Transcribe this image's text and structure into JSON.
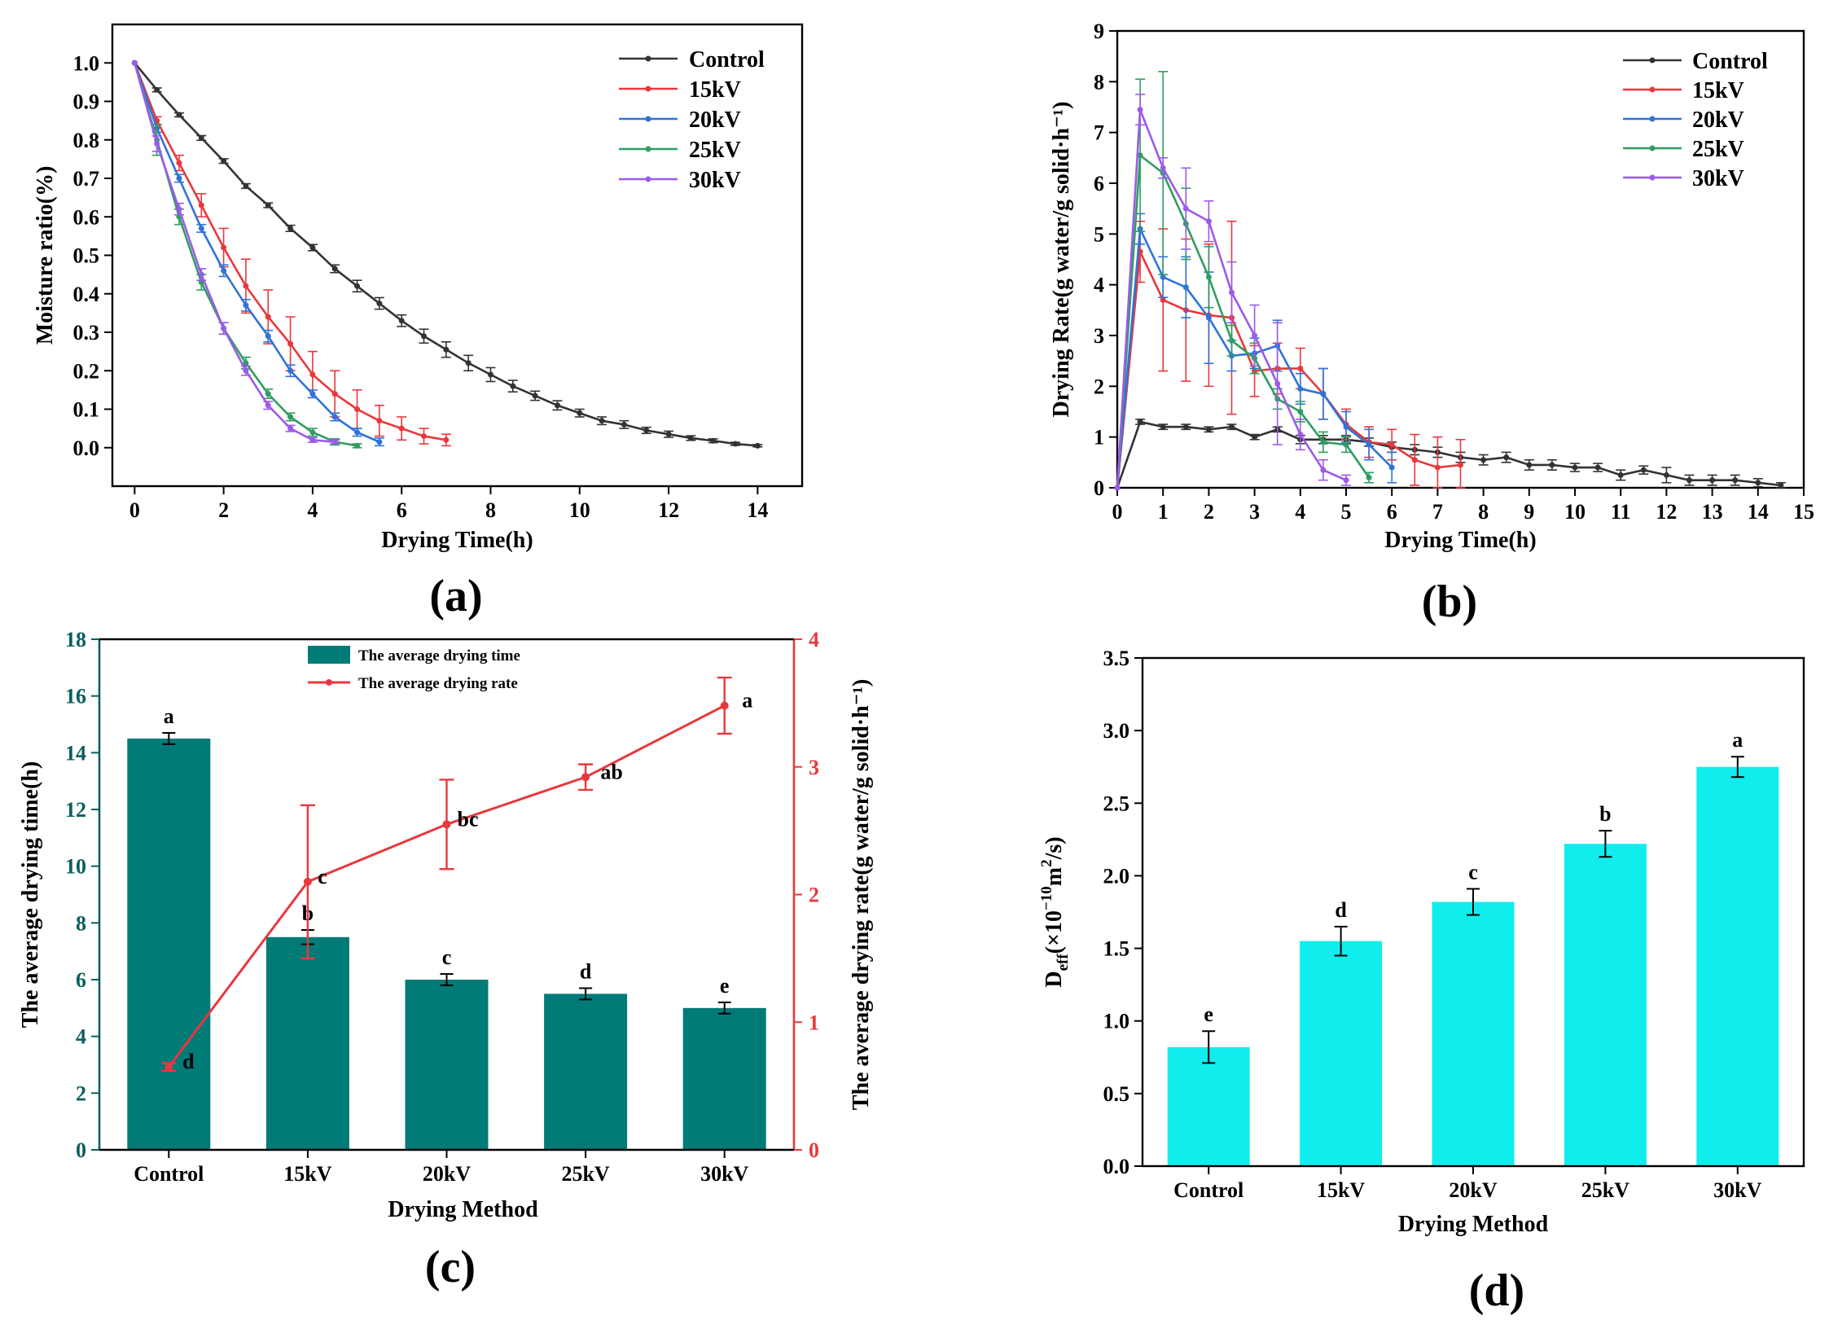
{
  "panels": {
    "a": "(a)",
    "b": "(b)",
    "c": "(c)",
    "d": "(d)"
  },
  "chart_data": [
    {
      "id": "a",
      "type": "line",
      "title": "",
      "xlabel": "Drying Time(h)",
      "ylabel": "Moisture ratio(%)",
      "xlim": [
        -0.5,
        15
      ],
      "ylim": [
        -0.1,
        1.1
      ],
      "xticks": [
        0,
        2,
        4,
        6,
        8,
        10,
        12,
        14
      ],
      "yticks": [
        0.0,
        0.1,
        0.2,
        0.3,
        0.4,
        0.5,
        0.6,
        0.7,
        0.8,
        0.9,
        1.0
      ],
      "ytick_labels": [
        "0.0",
        "0.1",
        "0.2",
        "0.3",
        "0.4",
        "0.5",
        "0.6",
        "0.7",
        "0.8",
        "0.9",
        "1.0"
      ],
      "legend_position": "top-right",
      "series": [
        {
          "name": "Control",
          "color": "#333333",
          "x": [
            0,
            0.5,
            1,
            1.5,
            2,
            2.5,
            3,
            3.5,
            4,
            4.5,
            5,
            5.5,
            6,
            6.5,
            7,
            7.5,
            8,
            8.5,
            9,
            9.5,
            10,
            10.5,
            11,
            11.5,
            12,
            12.5,
            13,
            13.5,
            14
          ],
          "y": [
            1.0,
            0.93,
            0.865,
            0.805,
            0.745,
            0.68,
            0.63,
            0.57,
            0.52,
            0.465,
            0.42,
            0.375,
            0.33,
            0.29,
            0.255,
            0.22,
            0.19,
            0.16,
            0.135,
            0.11,
            0.09,
            0.07,
            0.06,
            0.045,
            0.035,
            0.025,
            0.018,
            0.01,
            0.005
          ],
          "err": [
            0,
            0.005,
            0.005,
            0.006,
            0.006,
            0.006,
            0.006,
            0.008,
            0.008,
            0.01,
            0.015,
            0.015,
            0.015,
            0.018,
            0.02,
            0.02,
            0.018,
            0.015,
            0.012,
            0.012,
            0.01,
            0.01,
            0.01,
            0.008,
            0.008,
            0.006,
            0.005,
            0.004,
            0.003
          ]
        },
        {
          "name": "15kV",
          "color": "#e8383d",
          "x": [
            0,
            0.5,
            1,
            1.5,
            2,
            2.5,
            3,
            3.5,
            4,
            4.5,
            5,
            5.5,
            6,
            6.5,
            7
          ],
          "y": [
            1.0,
            0.85,
            0.74,
            0.63,
            0.52,
            0.42,
            0.34,
            0.27,
            0.19,
            0.14,
            0.1,
            0.07,
            0.05,
            0.03,
            0.02
          ],
          "err": [
            0,
            0.01,
            0.02,
            0.03,
            0.05,
            0.07,
            0.07,
            0.07,
            0.06,
            0.06,
            0.05,
            0.04,
            0.03,
            0.02,
            0.015
          ]
        },
        {
          "name": "20kV",
          "color": "#2f73d9",
          "x": [
            0,
            0.5,
            1,
            1.5,
            2,
            2.5,
            3,
            3.5,
            4,
            4.5,
            5,
            5.5
          ],
          "y": [
            1.0,
            0.83,
            0.7,
            0.57,
            0.46,
            0.37,
            0.29,
            0.2,
            0.14,
            0.08,
            0.04,
            0.015
          ],
          "err": [
            0,
            0.01,
            0.01,
            0.01,
            0.015,
            0.015,
            0.015,
            0.015,
            0.01,
            0.01,
            0.01,
            0.01
          ]
        },
        {
          "name": "25kV",
          "color": "#2e9e60",
          "x": [
            0,
            0.5,
            1,
            1.5,
            2,
            2.5,
            3,
            3.5,
            4,
            4.5,
            5
          ],
          "y": [
            1.0,
            0.8,
            0.6,
            0.43,
            0.31,
            0.22,
            0.14,
            0.08,
            0.04,
            0.015,
            0.005
          ],
          "err": [
            0,
            0.04,
            0.02,
            0.02,
            0.015,
            0.015,
            0.012,
            0.01,
            0.01,
            0.008,
            0.005
          ]
        },
        {
          "name": "30kV",
          "color": "#9b5be8",
          "x": [
            0,
            0.5,
            1,
            1.5,
            2,
            2.5,
            3,
            3.5,
            4,
            4.5
          ],
          "y": [
            1.0,
            0.79,
            0.62,
            0.45,
            0.31,
            0.2,
            0.11,
            0.05,
            0.02,
            0.015
          ],
          "err": [
            0,
            0.02,
            0.015,
            0.015,
            0.015,
            0.012,
            0.01,
            0.008,
            0.006,
            0.005
          ]
        }
      ]
    },
    {
      "id": "b",
      "type": "line",
      "title": "",
      "xlabel": "Drying Time(h)",
      "ylabel": "Drying Rate(g water/g solid·h⁻¹)",
      "xlim": [
        0,
        15
      ],
      "ylim": [
        0,
        9
      ],
      "xticks": [
        0,
        1,
        2,
        3,
        4,
        5,
        6,
        7,
        8,
        9,
        10,
        11,
        12,
        13,
        14,
        15
      ],
      "yticks": [
        0,
        1,
        2,
        3,
        4,
        5,
        6,
        7,
        8,
        9
      ],
      "legend_position": "top-right",
      "series": [
        {
          "name": "Control",
          "color": "#333333",
          "x": [
            0,
            0.5,
            1,
            1.5,
            2,
            2.5,
            3,
            3.5,
            4,
            4.5,
            5,
            5.5,
            6,
            6.5,
            7,
            7.5,
            8,
            8.5,
            9,
            9.5,
            10,
            10.5,
            11,
            11.5,
            12,
            12.5,
            13,
            13.5,
            14,
            14.5
          ],
          "y": [
            0,
            1.3,
            1.2,
            1.2,
            1.15,
            1.2,
            1.0,
            1.15,
            0.95,
            0.95,
            0.95,
            0.9,
            0.8,
            0.75,
            0.7,
            0.6,
            0.55,
            0.6,
            0.45,
            0.45,
            0.4,
            0.4,
            0.25,
            0.35,
            0.25,
            0.15,
            0.15,
            0.15,
            0.1,
            0.05
          ],
          "err": [
            0,
            0.05,
            0.05,
            0.05,
            0.05,
            0.05,
            0.05,
            0.05,
            0.08,
            0.08,
            0.08,
            0.08,
            0.1,
            0.1,
            0.1,
            0.1,
            0.1,
            0.1,
            0.1,
            0.1,
            0.08,
            0.08,
            0.1,
            0.08,
            0.15,
            0.1,
            0.1,
            0.1,
            0.08,
            0.05
          ]
        },
        {
          "name": "15kV",
          "color": "#e8383d",
          "x": [
            0,
            0.5,
            1,
            1.5,
            2,
            2.5,
            3,
            3.5,
            4,
            4.5,
            5,
            5.5,
            6,
            6.5,
            7,
            7.5
          ],
          "y": [
            0,
            4.65,
            3.7,
            3.5,
            3.4,
            3.35,
            2.3,
            2.35,
            2.35,
            1.85,
            1.25,
            0.9,
            0.85,
            0.55,
            0.4,
            0.45
          ],
          "err": [
            0,
            0.6,
            1.4,
            1.4,
            1.4,
            1.9,
            0.5,
            0.5,
            0.4,
            0.5,
            0.3,
            0.3,
            0.3,
            0.5,
            0.6,
            0.5
          ]
        },
        {
          "name": "20kV",
          "color": "#2f73d9",
          "x": [
            0,
            0.5,
            1,
            1.5,
            2,
            2.5,
            3,
            3.5,
            4,
            4.5,
            5,
            5.5,
            6
          ],
          "y": [
            0,
            5.1,
            4.15,
            3.95,
            3.35,
            2.6,
            2.65,
            2.8,
            1.95,
            1.85,
            1.2,
            0.85,
            0.4
          ],
          "err": [
            0,
            0.3,
            0.4,
            0.6,
            0.9,
            0.3,
            0.3,
            0.5,
            0.3,
            0.5,
            0.3,
            0.3,
            0.3
          ]
        },
        {
          "name": "25kV",
          "color": "#2e9e60",
          "x": [
            0,
            0.5,
            1,
            1.5,
            2,
            2.5,
            3,
            3.5,
            4,
            4.5,
            5,
            5.5
          ],
          "y": [
            0,
            6.55,
            6.2,
            5.2,
            4.15,
            2.9,
            2.55,
            1.75,
            1.5,
            0.9,
            0.85,
            0.2
          ],
          "err": [
            0,
            1.5,
            2.0,
            0.7,
            0.6,
            0.3,
            0.3,
            0.2,
            0.2,
            0.2,
            0.15,
            0.1
          ]
        },
        {
          "name": "30kV",
          "color": "#9b5be8",
          "x": [
            0,
            0.5,
            1,
            1.5,
            2,
            2.5,
            3,
            3.5,
            4,
            4.5,
            5
          ],
          "y": [
            0,
            7.45,
            6.3,
            5.5,
            5.25,
            3.85,
            3.0,
            2.05,
            1.05,
            0.35,
            0.15
          ],
          "err": [
            0,
            0.3,
            0.2,
            0.8,
            0.4,
            0.6,
            0.6,
            1.2,
            0.3,
            0.2,
            0.1
          ]
        }
      ]
    },
    {
      "id": "c",
      "type": "bar",
      "title": "",
      "xlabel": "Drying Method",
      "ylabel": "The average drying time(h)",
      "y2label": "The average drying rate(g water/g solid·h⁻¹)",
      "categories": [
        "Control",
        "15kV",
        "20kV",
        "25kV",
        "30kV"
      ],
      "ylim": [
        0,
        18
      ],
      "y2lim": [
        0,
        4
      ],
      "yticks": [
        0,
        2,
        4,
        6,
        8,
        10,
        12,
        14,
        16,
        18
      ],
      "y2ticks": [
        0,
        1,
        2,
        3,
        4
      ],
      "axis_color_left": "#0b5f5f",
      "axis_color_right": "#e8383d",
      "legend_position": "top-center",
      "series": [
        {
          "name": "The average drying time",
          "kind": "bar",
          "color": "#007b78",
          "values": [
            14.5,
            7.5,
            6.0,
            5.5,
            5.0
          ],
          "err": [
            0.2,
            0.25,
            0.2,
            0.2,
            0.2
          ],
          "letters": [
            "a",
            "b",
            "c",
            "d",
            "e"
          ]
        },
        {
          "name": "The average drying rate",
          "kind": "line",
          "color": "#e8383d",
          "values": [
            0.65,
            2.1,
            2.55,
            2.92,
            3.48
          ],
          "err": [
            0.03,
            0.6,
            0.35,
            0.1,
            0.22
          ],
          "letters": [
            "d",
            "c",
            "bc",
            "ab",
            "a"
          ]
        }
      ]
    },
    {
      "id": "d",
      "type": "bar",
      "title": "",
      "xlabel": "Drying Method",
      "ylabel": "D_eff(×10⁻¹⁰m²/s)",
      "ylabel_parts": {
        "main": "D",
        "sub": "eff",
        "paren_open": "(×10",
        "exp": "−10",
        "unit": "m",
        "unit_exp": "2",
        "tail": "/s)"
      },
      "categories": [
        "Control",
        "15kV",
        "20kV",
        "25kV",
        "30kV"
      ],
      "ylim": [
        0,
        3.5
      ],
      "yticks": [
        0.0,
        0.5,
        1.0,
        1.5,
        2.0,
        2.5,
        3.0,
        3.5
      ],
      "ytick_labels": [
        "0.0",
        "0.5",
        "1.0",
        "1.5",
        "2.0",
        "2.5",
        "3.0",
        "3.5"
      ],
      "series": [
        {
          "name": "Deff",
          "color": "#11eded",
          "values": [
            0.82,
            1.55,
            1.82,
            2.22,
            2.75
          ],
          "err": [
            0.11,
            0.1,
            0.09,
            0.09,
            0.07
          ],
          "letters": [
            "e",
            "d",
            "c",
            "b",
            "a"
          ]
        }
      ]
    }
  ]
}
